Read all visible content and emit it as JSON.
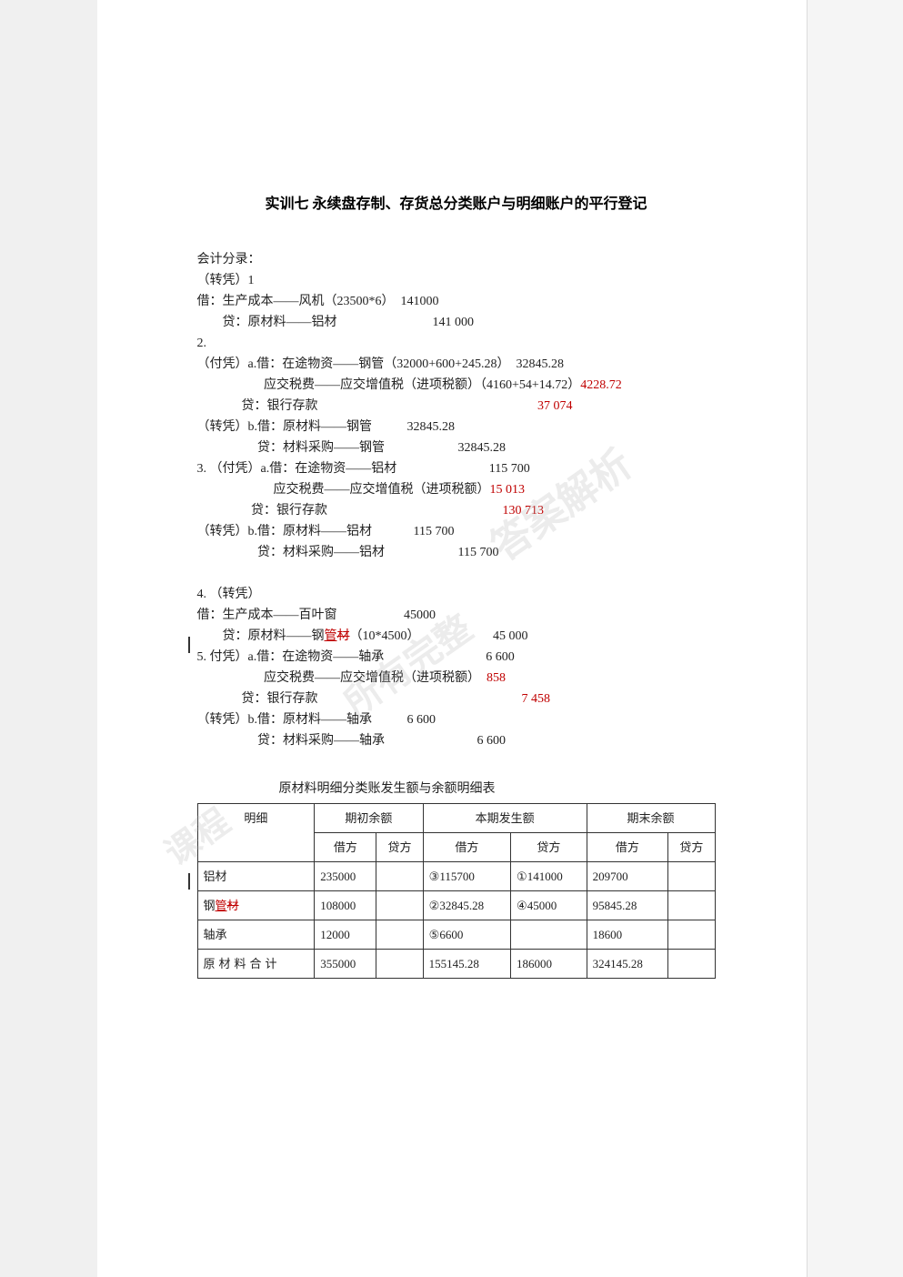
{
  "title": "实训七  永续盘存制、存货总分类账户与明细账户的平行登记",
  "section_label": "会计分录：",
  "entries": {
    "e1": {
      "label": "（转凭）1",
      "l1a": "借：生产成本——风机（23500*6）  141000",
      "l1b": "        贷：原材料——铝材                              141 000"
    },
    "e2": {
      "label": "2.",
      "l2a": "（付凭）a.借：在途物资——钢管（32000+600+245.28）  32845.28",
      "l2b": "                     应交税费——应交增值税（进项税额）（4160+54+14.72）",
      "l2b_red": "4228.72",
      "l2c": "              贷：银行存款                                                                     ",
      "l2c_red": "37 074",
      "l2d": "（转凭）b.借：原材料——钢管           32845.28",
      "l2e": "                   贷：材料采购——钢管                       32845.28"
    },
    "e3": {
      "label": "3. （付凭）a.借：在途物资——铝材                             115 700",
      "l3a": "                        应交税费——应交增值税（进项税额）",
      "l3a_red": "15 013",
      "l3b": "                 贷：银行存款                                                       ",
      "l3b_red": "130 713",
      "l3c": "（转凭）b.借：原材料——铝材             115 700",
      "l3d": "                   贷：材料采购——铝材                       115 700"
    },
    "e4": {
      "label": "4. （转凭）",
      "l4a": "借：生产成本——百叶窗                     45000",
      "l4b_pre": "        贷：原材料——钢",
      "l4b_ins": "管",
      "l4b_del": "材",
      "l4b_post": "（10*4500）                       45 000"
    },
    "e5": {
      "label": "5. 付凭）a.借：在途物资——轴承                                6 600",
      "l5a": "                     应交税费——应交增值税（进项税额）  ",
      "l5a_red": "858",
      "l5b": "              贷：银行存款                                                                ",
      "l5b_red": "7 458",
      "l5c": "（转凭）b.借：原材料——轴承           6 600",
      "l5d": "                   贷：材料采购——轴承                             6 600"
    }
  },
  "table": {
    "caption": "原材料明细分类账发生额与余额明细表",
    "head": {
      "c1": "明细",
      "c2": "期初余额",
      "c3": "本期发生额",
      "c4": "期末余额",
      "sub_dr": "借方",
      "sub_cr": "贷方"
    },
    "rows": [
      {
        "name": "铝材",
        "qcd": "235000",
        "qcc": "",
        "bqd": "③115700",
        "bqc": "①141000",
        "qmd": "209700",
        "qmc": ""
      },
      {
        "name_pre": "钢",
        "name_ins": "管",
        "name_del": "材",
        "qcd": "108000",
        "qcc": "",
        "bqd": "②32845.28",
        "bqc": "④45000",
        "qmd": "95845.28",
        "qmc": ""
      },
      {
        "name": "轴承",
        "qcd": "12000",
        "qcc": "",
        "bqd": "⑤6600",
        "bqc": "",
        "qmd": "18600",
        "qmc": ""
      },
      {
        "name": "原材料合计",
        "qcd": "355000",
        "qcc": "",
        "bqd": "155145.28",
        "bqc": "186000",
        "qmd": "324145.28",
        "qmc": ""
      }
    ]
  },
  "watermarks": {
    "w1": "答案解析",
    "w2": "所有完整",
    "w3": "课程"
  },
  "colors": {
    "red": "#c00000",
    "text": "#222222",
    "border": "#333333",
    "background": "#ffffff"
  }
}
